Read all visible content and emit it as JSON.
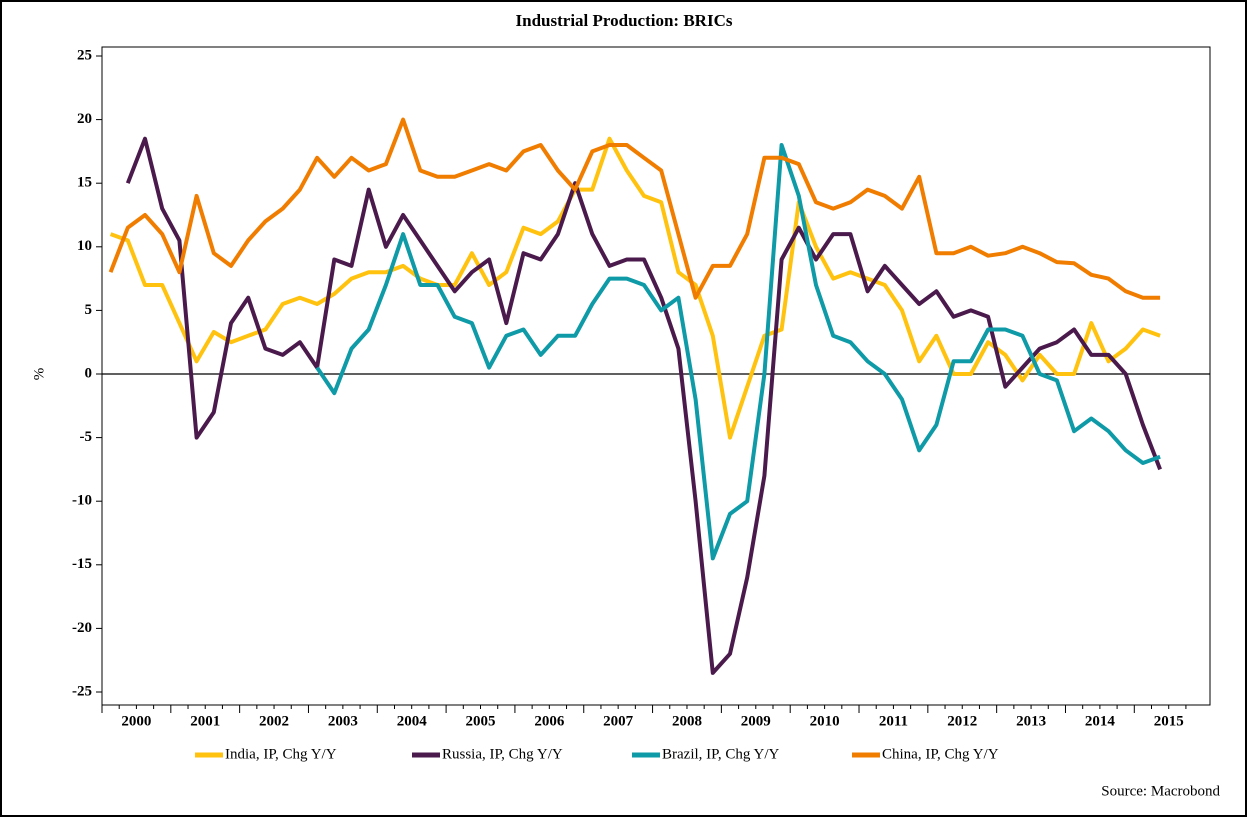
{
  "chart_data": {
    "type": "line",
    "title": "Industrial Production: BRICs",
    "y_label": "%",
    "source": "Source: Macrobond",
    "x": [
      2000.125,
      2000.375,
      2000.625,
      2000.875,
      2001.125,
      2001.375,
      2001.625,
      2001.875,
      2002.125,
      2002.375,
      2002.625,
      2002.875,
      2003.125,
      2003.375,
      2003.625,
      2003.875,
      2004.125,
      2004.375,
      2004.625,
      2004.875,
      2005.125,
      2005.375,
      2005.625,
      2005.875,
      2006.125,
      2006.375,
      2006.625,
      2006.875,
      2007.125,
      2007.375,
      2007.625,
      2007.875,
      2008.125,
      2008.375,
      2008.625,
      2008.875,
      2009.125,
      2009.375,
      2009.625,
      2009.875,
      2010.125,
      2010.375,
      2010.625,
      2010.875,
      2011.125,
      2011.375,
      2011.625,
      2011.875,
      2012.125,
      2012.375,
      2012.625,
      2012.875,
      2013.125,
      2013.375,
      2013.625,
      2013.875,
      2014.125,
      2014.375,
      2014.625,
      2014.875,
      2015.125,
      2015.375
    ],
    "series": [
      {
        "name": "India, IP, Chg Y/Y",
        "color": "#ffc20e",
        "values": [
          11,
          10.5,
          7,
          7,
          4,
          1,
          3.3,
          2.5,
          3,
          3.5,
          5.5,
          6,
          5.5,
          6.3,
          7.5,
          8,
          8,
          8.5,
          7.5,
          7,
          7,
          9.5,
          7,
          8,
          11.5,
          11,
          12,
          14.5,
          14.5,
          18.5,
          16,
          14,
          13.5,
          8,
          7,
          3,
          -5,
          -1,
          3,
          3.5,
          13.5,
          10,
          7.5,
          8,
          7.5,
          7,
          5,
          1,
          3,
          0,
          0,
          2.5,
          1.5,
          -0.5,
          1.5,
          0,
          0,
          4,
          1,
          2,
          3.5,
          3
        ]
      },
      {
        "name": "Russia, IP, Chg Y/Y",
        "color": "#4b1a4c",
        "values": [
          null,
          15,
          18.5,
          13,
          10.5,
          -5,
          -3,
          4,
          6,
          2,
          1.5,
          2.5,
          0.5,
          9,
          8.5,
          14.5,
          10,
          12.5,
          10.5,
          8.5,
          6.5,
          8,
          9,
          4,
          9.5,
          9,
          11,
          15,
          11,
          8.5,
          9,
          9,
          6,
          2,
          -10,
          -23.5,
          -22,
          -16,
          -8,
          9,
          11.5,
          9,
          11,
          11,
          6.5,
          8.5,
          7,
          5.5,
          6.5,
          4.5,
          5,
          4.5,
          -1,
          0.5,
          2,
          2.5,
          3.5,
          1.5,
          1.5,
          0,
          -4,
          -7.5
        ]
      },
      {
        "name": "Brazil, IP, Chg Y/Y",
        "color": "#0e9aa7",
        "values": [
          null,
          null,
          null,
          null,
          null,
          null,
          null,
          null,
          null,
          null,
          null,
          null,
          0.5,
          -1.5,
          2,
          3.5,
          7,
          11,
          7,
          7,
          4.5,
          4,
          0.5,
          3,
          3.5,
          1.5,
          3,
          3,
          5.5,
          7.5,
          7.5,
          7,
          5,
          6,
          -2,
          -14.5,
          -11,
          -10,
          0,
          18,
          14,
          7,
          3,
          2.5,
          1,
          0,
          -2,
          -6,
          -4,
          1,
          1,
          3.5,
          3.5,
          3,
          0,
          -0.5,
          -4.5,
          -3.5,
          -4.5,
          -6,
          -7,
          -6.5
        ]
      },
      {
        "name": "China, IP, Chg Y/Y",
        "color": "#f07d00",
        "values": [
          8,
          11.5,
          12.5,
          11,
          8,
          14,
          9.5,
          8.5,
          10.5,
          12,
          13,
          14.5,
          17,
          15.5,
          17,
          16,
          16.5,
          20,
          16,
          15.5,
          15.5,
          16,
          16.5,
          16,
          17.5,
          18,
          16,
          14.5,
          17.5,
          18,
          18,
          17,
          16,
          11,
          6,
          8.5,
          8.5,
          11,
          17,
          17,
          16.5,
          13.5,
          13,
          13.5,
          14.5,
          14,
          13,
          15.5,
          9.5,
          9.5,
          10,
          9.3,
          9.5,
          10,
          9.5,
          8.8,
          8.7,
          7.8,
          7.5,
          6.5,
          6,
          6
        ]
      }
    ],
    "xlim": [
      2000,
      2016.1
    ],
    "xticks": [
      2000,
      2001,
      2002,
      2003,
      2004,
      2005,
      2006,
      2007,
      2008,
      2009,
      2010,
      2011,
      2012,
      2013,
      2014,
      2015
    ],
    "ylim": [
      -25,
      25
    ],
    "yticks": [
      -25,
      -20,
      -15,
      -10,
      -5,
      0,
      5,
      10,
      15,
      20,
      25
    ],
    "zero_line": true,
    "legend": "bottom"
  }
}
